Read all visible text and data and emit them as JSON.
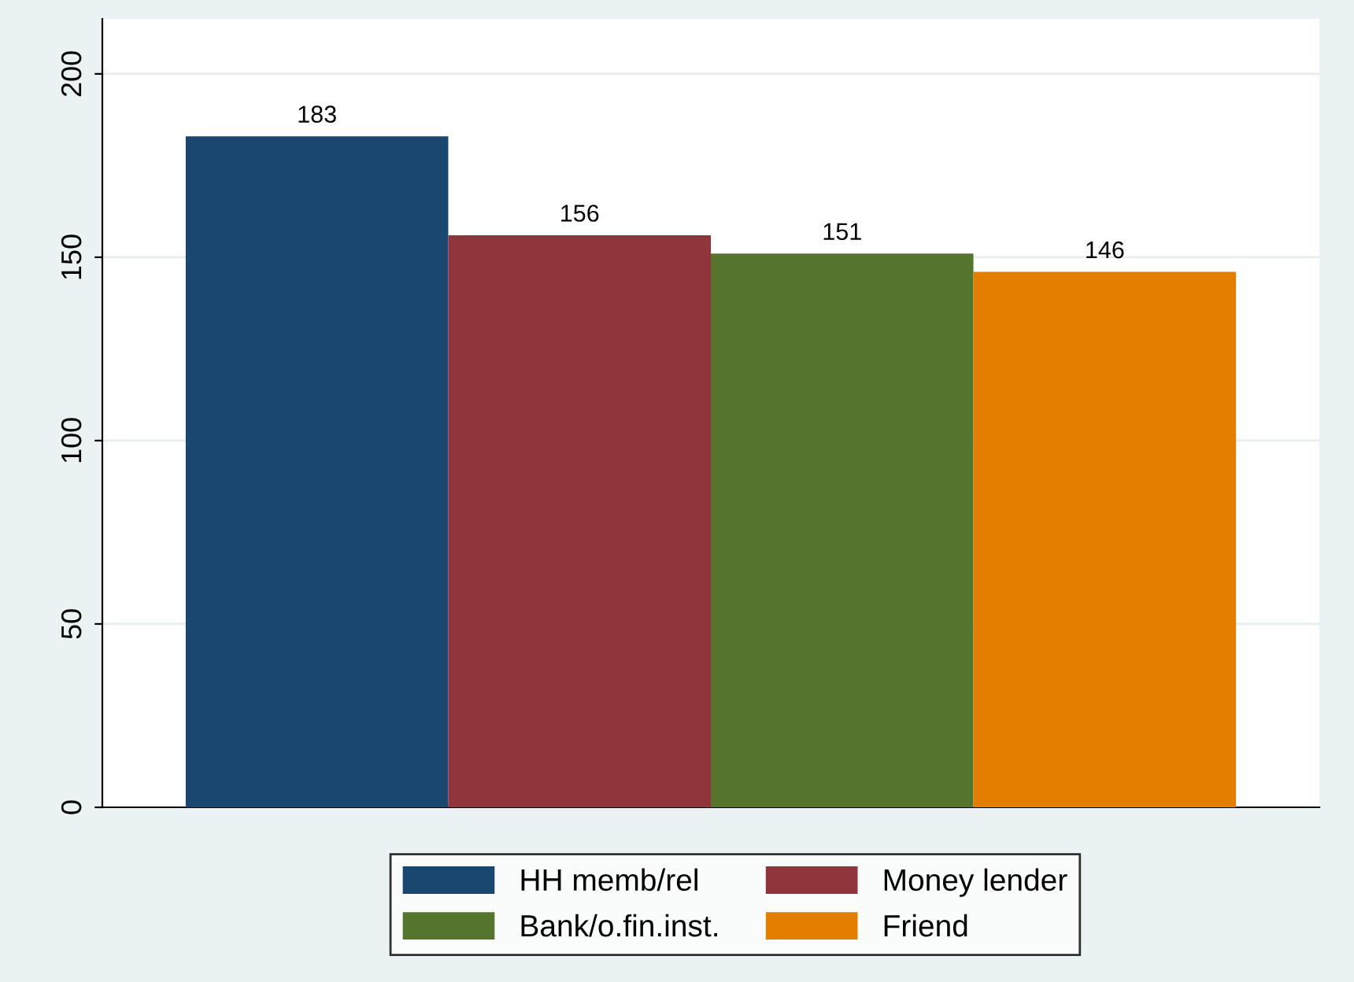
{
  "chart_data": {
    "type": "bar",
    "categories": [
      null
    ],
    "series": [
      {
        "name": "HH memb/rel",
        "color": "#1a476f",
        "values": [
          183
        ]
      },
      {
        "name": "Money lender",
        "color": "#90353b",
        "values": [
          156
        ]
      },
      {
        "name": "Bank/o.fin.inst.",
        "color": "#55752f",
        "values": [
          151
        ]
      },
      {
        "name": "Friend",
        "color": "#e37e00",
        "values": [
          146
        ]
      }
    ],
    "ylim": [
      0,
      215
    ],
    "yticks": [
      0,
      50,
      100,
      150,
      200
    ],
    "grid": "y",
    "data_labels": true,
    "legend": "bottom"
  }
}
